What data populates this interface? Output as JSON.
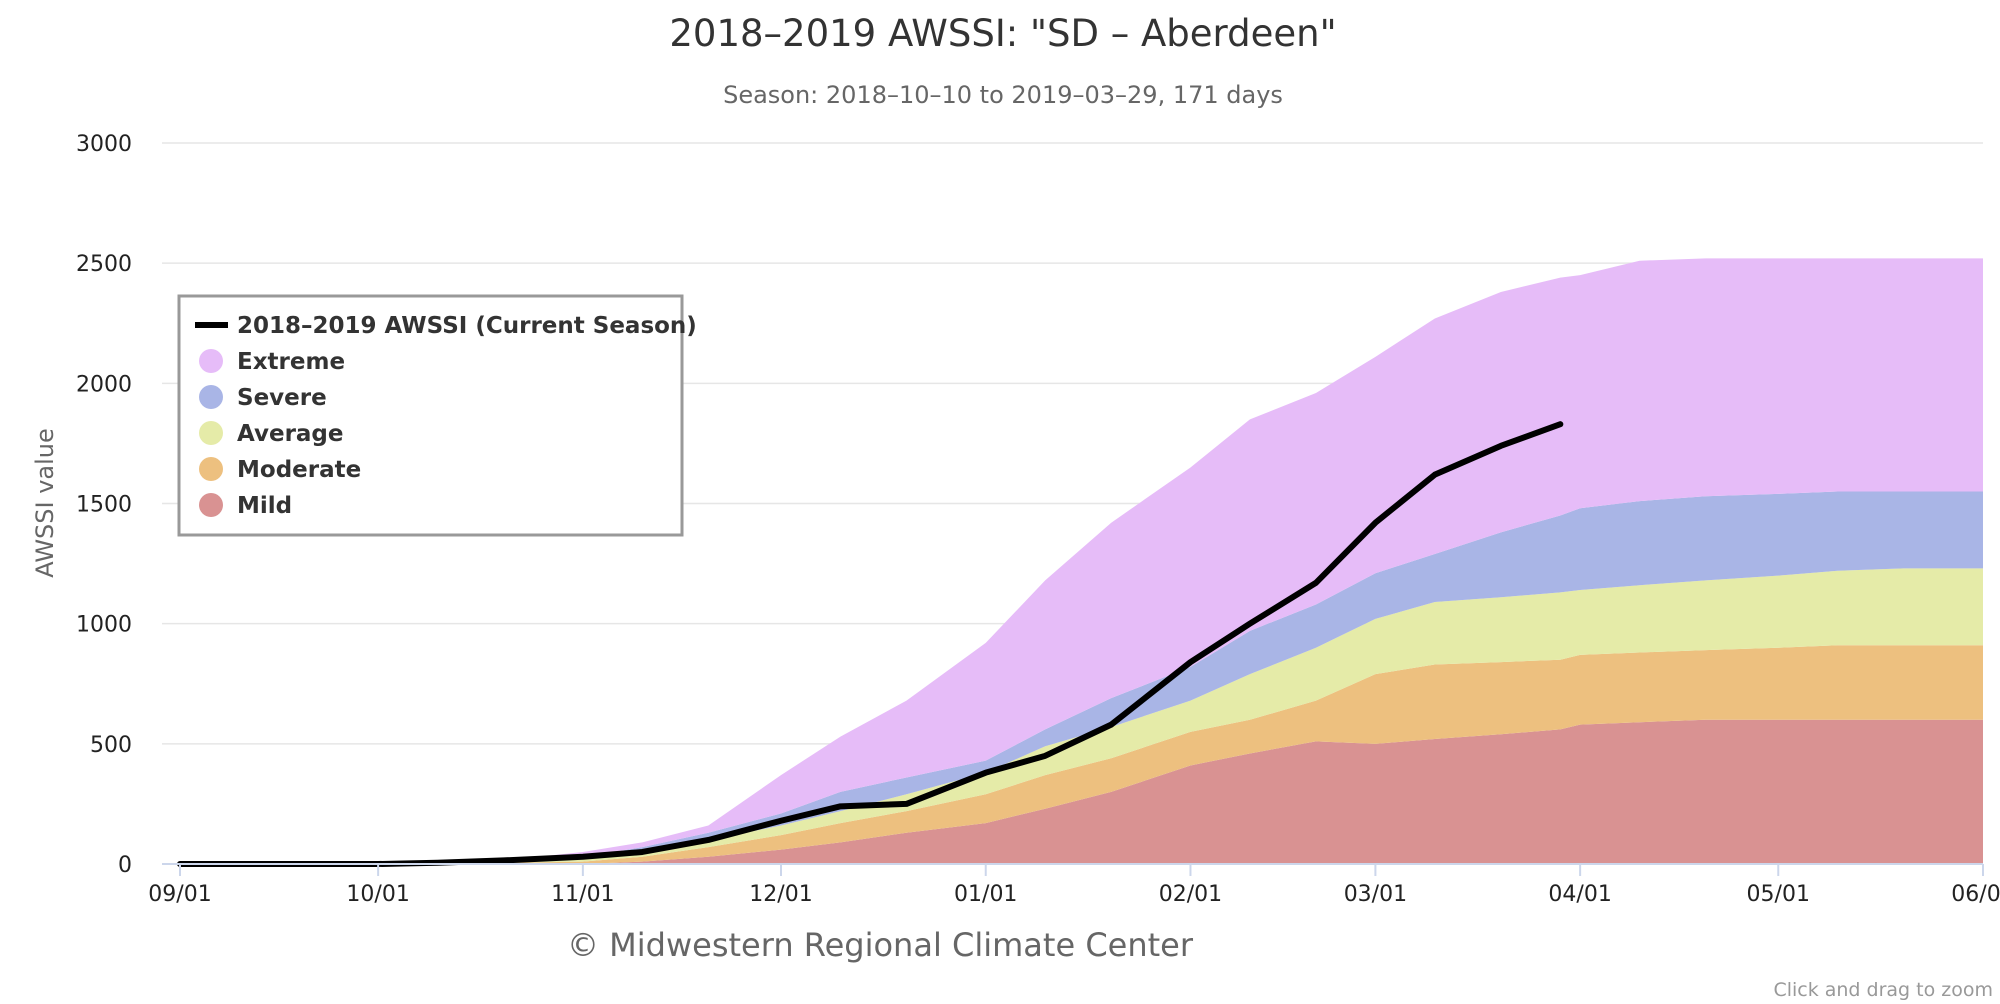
{
  "chart_data": {
    "type": "area",
    "title": "2018–2019 AWSSI: \"SD – Aberdeen\"",
    "subtitle": "Season: 2018–10–10 to 2019–03–29, 171 days",
    "ylabel": "AWSSI value",
    "xlabel": "",
    "ylim": [
      0,
      3000
    ],
    "yticks": [
      0,
      500,
      1000,
      1500,
      2000,
      2500,
      3000
    ],
    "xticks": [
      "09/01",
      "10/01",
      "11/01",
      "12/01",
      "01/01",
      "02/01",
      "03/01",
      "04/01",
      "05/01",
      "06/01"
    ],
    "grid": true,
    "legend_position": "top-left",
    "categories": [
      "09-01",
      "10-01",
      "10-10",
      "10-20",
      "11-01",
      "11-10",
      "11-20",
      "12-01",
      "12-10",
      "12-20",
      "01-01",
      "01-10",
      "01-20",
      "02-01",
      "02-10",
      "02-20",
      "03-01",
      "03-10",
      "03-20",
      "03-29",
      "04-01",
      "04-10",
      "04-20",
      "05-01",
      "05-10",
      "05-20",
      "06-01"
    ],
    "series": [
      {
        "name": "Mild",
        "color": "#d99292",
        "kind": "band",
        "lower": [
          0,
          0,
          0,
          0,
          0,
          0,
          0,
          0,
          0,
          0,
          0,
          0,
          0,
          0,
          0,
          0,
          0,
          0,
          0,
          0,
          0,
          0,
          0,
          0,
          0,
          0,
          0
        ],
        "upper": [
          0,
          0,
          0,
          0,
          0,
          10,
          30,
          60,
          90,
          130,
          170,
          230,
          300,
          410,
          460,
          510,
          500,
          520,
          540,
          560,
          580,
          590,
          600,
          600,
          600,
          600,
          600
        ]
      },
      {
        "name": "Moderate",
        "color": "#edc07f",
        "kind": "band",
        "lower": [
          0,
          0,
          0,
          0,
          0,
          10,
          30,
          60,
          90,
          130,
          170,
          230,
          300,
          410,
          460,
          510,
          500,
          520,
          540,
          560,
          580,
          590,
          600,
          600,
          600,
          600,
          600
        ],
        "upper": [
          0,
          0,
          0,
          5,
          10,
          30,
          70,
          120,
          170,
          220,
          290,
          370,
          440,
          550,
          600,
          680,
          790,
          830,
          840,
          850,
          870,
          880,
          890,
          900,
          910,
          910,
          910
        ]
      },
      {
        "name": "Average",
        "color": "#e5eba8",
        "kind": "band",
        "lower": [
          0,
          0,
          0,
          5,
          10,
          30,
          70,
          120,
          170,
          220,
          290,
          370,
          440,
          550,
          600,
          680,
          790,
          830,
          840,
          850,
          870,
          880,
          890,
          900,
          910,
          910,
          910
        ],
        "upper": [
          0,
          0,
          0,
          8,
          20,
          50,
          100,
          160,
          220,
          290,
          380,
          490,
          570,
          680,
          790,
          900,
          1020,
          1090,
          1110,
          1130,
          1140,
          1160,
          1180,
          1200,
          1220,
          1230,
          1230
        ]
      },
      {
        "name": "Severe",
        "color": "#a9b5e6",
        "kind": "band",
        "lower": [
          0,
          0,
          0,
          8,
          20,
          50,
          100,
          160,
          220,
          290,
          380,
          490,
          570,
          680,
          790,
          900,
          1020,
          1090,
          1110,
          1130,
          1140,
          1160,
          1180,
          1200,
          1220,
          1230,
          1230
        ],
        "upper": [
          0,
          0,
          0,
          10,
          30,
          70,
          130,
          210,
          300,
          360,
          430,
          560,
          690,
          820,
          970,
          1080,
          1210,
          1290,
          1380,
          1450,
          1480,
          1510,
          1530,
          1540,
          1550,
          1550,
          1550
        ]
      },
      {
        "name": "Extreme",
        "color": "#e6bcf8",
        "kind": "band",
        "lower": [
          0,
          0,
          0,
          10,
          30,
          70,
          130,
          210,
          300,
          360,
          430,
          560,
          690,
          820,
          970,
          1080,
          1210,
          1290,
          1380,
          1450,
          1480,
          1510,
          1530,
          1540,
          1550,
          1550,
          1550
        ],
        "upper": [
          0,
          0,
          0,
          15,
          50,
          90,
          160,
          370,
          530,
          680,
          920,
          1180,
          1420,
          1650,
          1850,
          1960,
          2110,
          2270,
          2380,
          2440,
          2450,
          2510,
          2520,
          2520,
          2520,
          2520,
          2520
        ]
      },
      {
        "name": "2018–2019 AWSSI (Current Season)",
        "color": "#000000",
        "kind": "line",
        "values": [
          0,
          0,
          5,
          15,
          30,
          50,
          100,
          180,
          240,
          250,
          380,
          450,
          580,
          840,
          1000,
          1170,
          1420,
          1620,
          1740,
          1830,
          null,
          null,
          null,
          null,
          null,
          null,
          null
        ]
      }
    ]
  },
  "footer": {
    "credit": "© Midwestern Regional Climate Center",
    "hint": "Click and drag to zoom"
  }
}
